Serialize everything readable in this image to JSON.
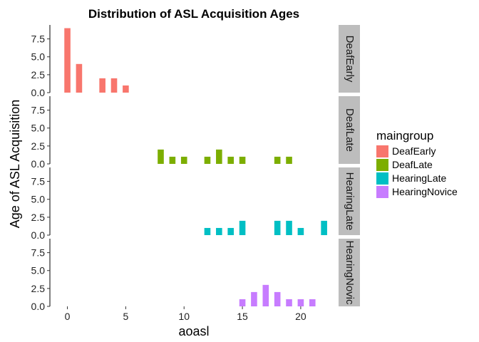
{
  "chart_data": {
    "type": "bar",
    "title": "Distribution of ASL Acquisition Ages",
    "xlabel": "aoasl",
    "ylabel": "Age of ASL Acquisition",
    "xlim": [
      -1.5,
      23
    ],
    "ylim": [
      0,
      9.45
    ],
    "x_ticks": [
      0,
      5,
      10,
      15,
      20
    ],
    "y_ticks": [
      0,
      2.5,
      5,
      7.5
    ],
    "y_tick_labels": [
      "0.0",
      "2.5",
      "5.0",
      "7.5"
    ],
    "grid": false,
    "facet": "rows by maingroup, label strips on right",
    "legend": {
      "title": "maingroup",
      "placement": "right",
      "entries": [
        {
          "label": "DeafEarly",
          "color": "#F8766D"
        },
        {
          "label": "DeafLate",
          "color": "#7CAE00"
        },
        {
          "label": "HearingLate",
          "color": "#00BFC4"
        },
        {
          "label": "HearingNovice",
          "color": "#C77CFF"
        }
      ]
    },
    "series": [
      {
        "name": "DeafEarly",
        "strip_label": "DeafEarly",
        "color": "#F8766D",
        "x": [
          0,
          1,
          3,
          4,
          5
        ],
        "values": [
          9,
          4,
          2,
          2,
          1
        ]
      },
      {
        "name": "DeafLate",
        "strip_label": "DeafLate",
        "color": "#7CAE00",
        "x": [
          8,
          9,
          10,
          12,
          13,
          14,
          15,
          18,
          19
        ],
        "values": [
          2,
          1,
          1,
          1,
          2,
          1,
          1,
          1,
          1
        ]
      },
      {
        "name": "HearingLate",
        "strip_label": "HearingLate",
        "color": "#00BFC4",
        "x": [
          12,
          13,
          14,
          15,
          18,
          19,
          20,
          22
        ],
        "values": [
          1,
          1,
          1,
          2,
          2,
          2,
          1,
          2
        ]
      },
      {
        "name": "HearingNovice",
        "strip_label": "HearingNovic",
        "color": "#C77CFF",
        "x": [
          15,
          16,
          17,
          18,
          19,
          20,
          21
        ],
        "values": [
          1,
          2,
          3,
          2,
          1,
          1,
          1
        ]
      }
    ]
  }
}
